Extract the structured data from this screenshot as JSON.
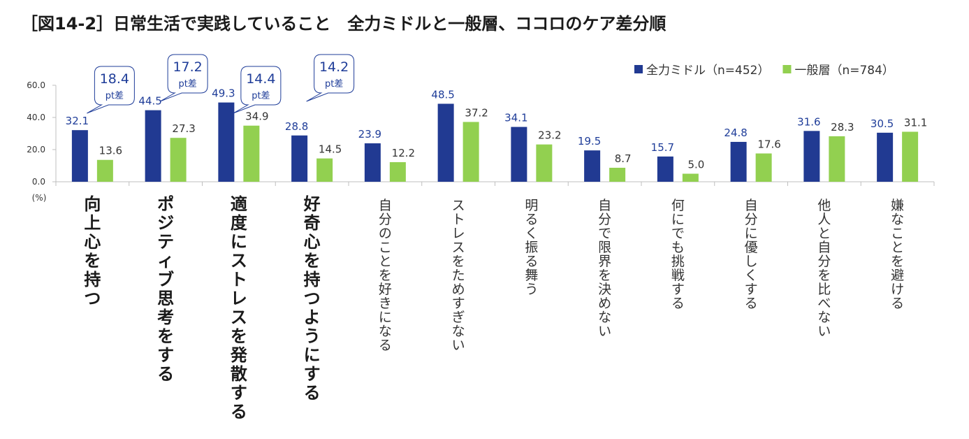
{
  "title": "［図14-2］日常生活で実践していること　全力ミドルと一般層、ココロのケア差分順",
  "chart_data": {
    "type": "bar",
    "unit_label": "(%)",
    "ylim": [
      0,
      60
    ],
    "yticks": [
      "0.0",
      "20.0",
      "40.0",
      "60.0"
    ],
    "categories": [
      "向上心を持つ",
      "ポジティブ思考をする",
      "適度にストレスを発散する",
      "好奇心を持つようにする",
      "自分のことを好きになる",
      "ストレスをためすぎない",
      "明るく振る舞う",
      "自分で限界を決めない",
      "何にでも挑戦する",
      "自分に優しくする",
      "他人と自分を比べない",
      "嫌なことを避ける"
    ],
    "bold_categories": 4,
    "series": [
      {
        "name": "全力ミドル（n=452）",
        "color": "#213a92",
        "values": [
          32.1,
          44.5,
          49.3,
          28.8,
          23.9,
          48.5,
          34.1,
          19.5,
          15.7,
          24.8,
          31.6,
          30.5
        ],
        "labels": [
          "32.1",
          "44.5",
          "49.3",
          "28.8",
          "23.9",
          "48.5",
          "34.1",
          "19.5",
          "15.7",
          "24.8",
          "31.6",
          "30.5"
        ]
      },
      {
        "name": "一般層（n=784）",
        "color": "#92d050",
        "values": [
          13.6,
          27.3,
          34.9,
          14.5,
          12.2,
          37.2,
          23.2,
          8.7,
          5.0,
          17.6,
          28.3,
          31.1
        ],
        "labels": [
          "13.6",
          "27.3",
          "34.9",
          "14.5",
          "12.2",
          "37.2",
          "23.2",
          "8.7",
          "5.0",
          "17.6",
          "28.3",
          "31.1"
        ]
      }
    ],
    "callouts": [
      {
        "category_index": 0,
        "value": "18.4",
        "unit": "pt差"
      },
      {
        "category_index": 1,
        "value": "17.2",
        "unit": "pt差"
      },
      {
        "category_index": 2,
        "value": "14.4",
        "unit": "pt差"
      },
      {
        "category_index": 3,
        "value": "14.2",
        "unit": "pt差"
      }
    ],
    "legend_position": "top-right",
    "grid": false
  },
  "colors": {
    "axis": "#bfbfbf",
    "label_blue": "#1f3d99",
    "label_dark": "#333333",
    "callout_border": "#1f3d99"
  }
}
